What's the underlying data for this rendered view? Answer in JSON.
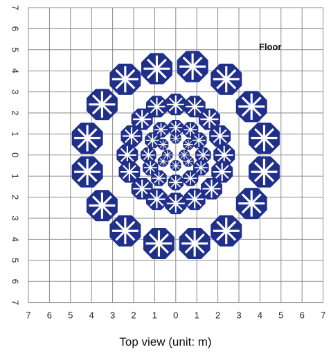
{
  "floor_label": "Floor",
  "caption": "Top view (unit: m)",
  "colors": {
    "grid": "#8a8a8a",
    "marker": "#1f2f8a",
    "marker_highlight": "#ffffff",
    "text": "#222222"
  },
  "chart_data": {
    "type": "scatter",
    "x_ticks": [
      "7",
      "6",
      "5",
      "4",
      "3",
      "2",
      "1",
      "0",
      "1",
      "2",
      "3",
      "4",
      "5",
      "6",
      "7"
    ],
    "y_ticks": [
      "7",
      "6",
      "5",
      "4",
      "3",
      "2",
      "1",
      "0",
      "1",
      "2",
      "3",
      "4",
      "5",
      "6",
      "7"
    ],
    "xlim": [
      -7,
      7
    ],
    "ylim": [
      -7,
      7
    ],
    "grid": true,
    "rings": [
      {
        "name": "",
        "size": 1.6,
        "points": [
          [
            -0.9,
            4.1
          ],
          [
            0.8,
            4.2
          ],
          [
            -2.4,
            3.6
          ],
          [
            2.4,
            3.6
          ],
          [
            -3.5,
            2.4
          ],
          [
            3.6,
            2.3
          ],
          [
            -4.2,
            0.8
          ],
          [
            4.2,
            0.8
          ],
          [
            -4.2,
            -0.8
          ],
          [
            4.2,
            -0.8
          ],
          [
            -3.5,
            -2.4
          ],
          [
            3.6,
            -2.3
          ],
          [
            -2.4,
            -3.6
          ],
          [
            2.4,
            -3.6
          ],
          [
            -0.8,
            -4.2
          ],
          [
            0.9,
            -4.2
          ]
        ]
      },
      {
        "name": "",
        "size": 1.1,
        "points": [
          [
            -0.9,
            2.3
          ],
          [
            0.0,
            2.4
          ],
          [
            0.9,
            2.3
          ],
          [
            -1.6,
            1.7
          ],
          [
            1.6,
            1.7
          ],
          [
            -2.1,
            0.9
          ],
          [
            2.1,
            0.9
          ],
          [
            -2.3,
            0.0
          ],
          [
            2.3,
            0.0
          ],
          [
            -2.2,
            -0.8
          ],
          [
            2.2,
            -0.8
          ],
          [
            -1.6,
            -1.6
          ],
          [
            1.7,
            -1.6
          ],
          [
            -0.9,
            -2.1
          ],
          [
            0.9,
            -2.1
          ],
          [
            0.0,
            -2.3
          ]
        ]
      },
      {
        "name": "",
        "size": 0.8,
        "points": [
          [
            -0.7,
            1.2
          ],
          [
            0.0,
            1.3
          ],
          [
            0.7,
            1.2
          ],
          [
            -1.1,
            0.7
          ],
          [
            1.1,
            0.7
          ],
          [
            -1.3,
            0.0
          ],
          [
            1.3,
            0.0
          ],
          [
            -1.2,
            -0.6
          ],
          [
            1.2,
            -0.6
          ],
          [
            -0.8,
            -1.1
          ],
          [
            0.0,
            -1.3
          ],
          [
            0.7,
            -1.1
          ]
        ]
      },
      {
        "name": "",
        "size": 0.55,
        "points": [
          [
            -0.6,
            0.5
          ],
          [
            0.0,
            0.8
          ],
          [
            0.6,
            0.5
          ],
          [
            -0.6,
            -0.3
          ],
          [
            0.6,
            -0.3
          ],
          [
            0.0,
            -0.5
          ],
          [
            -0.4,
            0.0
          ],
          [
            0.4,
            0.0
          ]
        ]
      }
    ]
  }
}
